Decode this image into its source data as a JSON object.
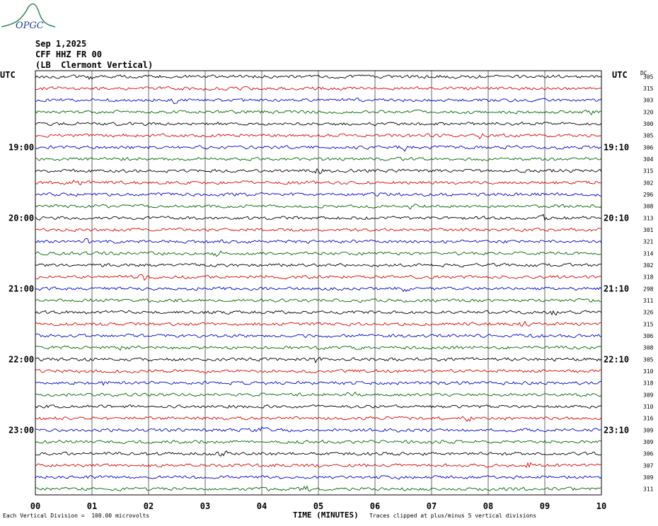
{
  "header": {
    "logo_text": "OPGC",
    "date": "Sep 1,2025",
    "station": "CFF HHZ FR 00",
    "location": "(LB  Clermont Vertical)"
  },
  "chart_data": {
    "type": "line",
    "left_axis_title": "UTC",
    "right_axis_title": "UTC",
    "dc_header": "DC",
    "xlabel": "TIME (MINUTES)",
    "xlim": [
      0,
      10
    ],
    "x_ticks": [
      "00",
      "01",
      "02",
      "03",
      "04",
      "05",
      "06",
      "07",
      "08",
      "09",
      "10"
    ],
    "left_time_labels": [
      {
        "row": 6,
        "label": "19:00"
      },
      {
        "row": 12,
        "label": "20:00"
      },
      {
        "row": 18,
        "label": "21:00"
      },
      {
        "row": 24,
        "label": "22:00"
      },
      {
        "row": 30,
        "label": "23:00"
      }
    ],
    "right_time_labels": [
      {
        "row": 6,
        "label": "19:10"
      },
      {
        "row": 12,
        "label": "20:10"
      },
      {
        "row": 18,
        "label": "21:10"
      },
      {
        "row": 24,
        "label": "22:10"
      },
      {
        "row": 30,
        "label": "23:10"
      }
    ],
    "trace_colors": [
      "#000000",
      "#e00000",
      "#0000cc",
      "#006600"
    ],
    "dc_offsets": [
      "305",
      "315",
      "303",
      "320",
      "300",
      "305",
      "306",
      "304",
      "315",
      "302",
      "296",
      "308",
      "313",
      "301",
      "321",
      "314",
      "302",
      "318",
      "298",
      "311",
      "326",
      "315",
      "306",
      "308",
      "305",
      "310",
      "318",
      "309",
      "310",
      "316",
      "309",
      "309",
      "306",
      "307",
      "309",
      "311"
    ],
    "scale_note": "Each Vertical Division =  100.00 microvolts",
    "clip_note": "Traces clipped at plus/minus 5 vertical divisions"
  }
}
